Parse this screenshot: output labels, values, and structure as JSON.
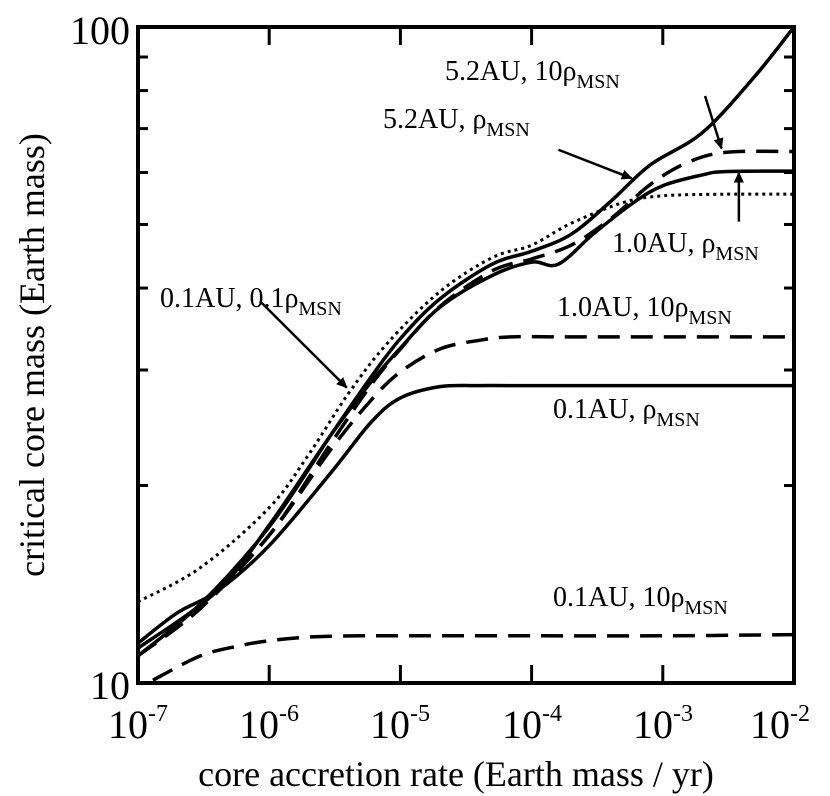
{
  "chart_data": {
    "type": "line",
    "xscale": "log",
    "yscale": "log",
    "xlim": [
      1e-07,
      0.01
    ],
    "ylim": [
      10,
      100
    ],
    "xlabel": "core accretion rate (Earth mass / yr)",
    "ylabel": "critical core mass (Earth mass)",
    "xticks": [
      {
        "base": "10",
        "exp": "-7"
      },
      {
        "base": "10",
        "exp": "-6"
      },
      {
        "base": "10",
        "exp": "-5"
      },
      {
        "base": "10",
        "exp": "-4"
      },
      {
        "base": "10",
        "exp": "-3"
      },
      {
        "base": "10",
        "exp": "-2"
      }
    ],
    "yticks": [
      "10",
      "100"
    ],
    "series": [
      {
        "name": "0.1AU, 0.1ρMSN",
        "style": "dotted",
        "x": [
          1e-07,
          3e-07,
          1e-06,
          2e-06,
          4e-06,
          8e-06,
          2e-05,
          5e-05,
          0.0001,
          0.0002,
          0.0005,
          0.001,
          0.003,
          0.01
        ],
        "y": [
          13.3,
          15.0,
          18.5,
          22.3,
          27.6,
          33.0,
          39.5,
          44.5,
          46.5,
          50.2,
          54.0,
          55.3,
          55.6,
          55.6
        ]
      },
      {
        "name": "0.1AU, ρMSN",
        "style": "solid",
        "x": [
          1e-07,
          2e-07,
          4e-07,
          1e-06,
          3e-06,
          6e-06,
          1e-05,
          2e-05,
          4e-05,
          0.0001,
          0.001,
          0.01
        ],
        "y": [
          11.5,
          12.8,
          13.8,
          16.2,
          21.0,
          25.0,
          27.2,
          28.3,
          28.4,
          28.4,
          28.4,
          28.4
        ]
      },
      {
        "name": "0.1AU, 10ρMSN",
        "style": "dashed",
        "x": [
          1.3e-07,
          3e-07,
          6e-07,
          1e-06,
          2e-06,
          5e-06,
          1e-05,
          0.0001,
          0.001,
          0.01
        ],
        "y": [
          10.1,
          11.0,
          11.4,
          11.6,
          11.75,
          11.8,
          11.8,
          11.8,
          11.8,
          11.85
        ]
      },
      {
        "name": "1.0AU, ρMSN",
        "style": "solid",
        "x": [
          1e-07,
          4e-07,
          1e-06,
          3e-06,
          6e-06,
          1e-05,
          2e-05,
          5e-05,
          0.0001,
          0.00016,
          0.0003,
          0.0006,
          0.001,
          0.002,
          0.003,
          0.01
        ],
        "y": [
          11.3,
          13.8,
          17.4,
          24.0,
          28.8,
          32.4,
          37.4,
          41.8,
          43.8,
          43.5,
          48.5,
          54.0,
          57.3,
          59.5,
          60.2,
          60.3
        ]
      },
      {
        "name": "1.0AU, 10ρMSN",
        "style": "dashed",
        "x": [
          1e-07,
          3e-07,
          1e-06,
          3e-06,
          6e-06,
          1e-05,
          2e-05,
          4e-05,
          7e-05,
          0.0002,
          0.001,
          0.01
        ],
        "y": [
          11.0,
          13.0,
          16.8,
          22.8,
          27.0,
          29.8,
          32.3,
          33.3,
          33.7,
          33.7,
          33.7,
          33.7
        ]
      },
      {
        "name": "5.2AU, ρMSN",
        "style": "dashed",
        "x": [
          1e-07,
          3e-07,
          1e-06,
          3e-06,
          6e-06,
          1e-05,
          2e-05,
          5e-05,
          0.0001,
          0.0002,
          0.0004,
          0.0008,
          0.0015,
          0.003,
          0.01
        ],
        "y": [
          11.0,
          13.1,
          16.8,
          23.3,
          28.5,
          32.3,
          37.5,
          42.5,
          44.3,
          46.5,
          51.0,
          57.5,
          62.0,
          64.4,
          64.6
        ]
      },
      {
        "name": "5.2AU, 10ρMSN",
        "style": "solid",
        "x": [
          1e-07,
          3e-07,
          1e-06,
          3e-06,
          6e-06,
          1e-05,
          2e-05,
          5e-05,
          0.0001,
          0.0002,
          0.0004,
          0.0008,
          0.002,
          0.005,
          0.01
        ],
        "y": [
          11.0,
          13.2,
          17.3,
          24.0,
          29.3,
          33.5,
          38.5,
          43.5,
          45.5,
          48.3,
          54.2,
          61.6,
          69.0,
          84.0,
          100.0
        ]
      }
    ],
    "annotations": [
      {
        "main": "5.2AU, 10ρ",
        "sub": "MSN",
        "arrow_from": [
          0.0021,
          78.5
        ],
        "arrow_to": [
          0.0028,
          65.3
        ]
      },
      {
        "main": "5.2AU, ρ",
        "sub": "MSN",
        "arrow_from": [
          0.00016,
          65.0
        ],
        "arrow_to": [
          0.00058,
          58.8
        ]
      },
      {
        "main": "1.0AU, ρ",
        "sub": "MSN",
        "arrow_from": [
          0.0038,
          50.5
        ],
        "arrow_to": [
          0.0038,
          60.0
        ]
      },
      {
        "main": "0.1AU, 0.1ρ",
        "sub": "MSN",
        "arrow_from": [
          8.5e-07,
          38.2
        ],
        "arrow_to": [
          3.9e-06,
          28.2
        ]
      },
      {
        "main": "1.0AU, 10ρ",
        "sub": "MSN",
        "arrow_from": null,
        "arrow_to": null
      },
      {
        "main": "0.1AU, ρ",
        "sub": "MSN",
        "arrow_from": null,
        "arrow_to": null
      },
      {
        "main": "0.1AU, 10ρ",
        "sub": "MSN",
        "arrow_from": null,
        "arrow_to": null
      }
    ]
  }
}
